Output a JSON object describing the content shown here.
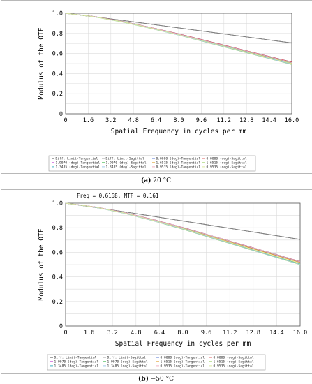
{
  "chart_data": [
    {
      "type": "line",
      "caption_label": "(a)",
      "caption_text": "20 °C",
      "readout": "",
      "xlabel": "Spatial Frequency in cycles per mm",
      "ylabel": "Modulus of the OTF",
      "xlim": [
        0,
        16
      ],
      "ylim": [
        0,
        1
      ],
      "x_ticks": [
        "0",
        "1.6",
        "3.2",
        "4.8",
        "6.4",
        "8.0",
        "9.6",
        "11.2",
        "12.8",
        "14.4",
        "16.0"
      ],
      "y_ticks": [
        "0",
        "0.2",
        "0.4",
        "0.6",
        "0.8",
        "1.0"
      ],
      "grid": true,
      "legend_placement": "bottom",
      "series": [
        {
          "name": "Diff. Limit-Tangential",
          "color": "#1a1a1a",
          "x": [
            0,
            4,
            8,
            12,
            16
          ],
          "y": [
            1.0,
            0.93,
            0.855,
            0.78,
            0.705
          ]
        },
        {
          "name": "Diff. Limit-Sagittal",
          "color": "#8a8a8a",
          "x": [
            0,
            4,
            8,
            12,
            16
          ],
          "y": [
            1.0,
            0.93,
            0.855,
            0.78,
            0.705
          ]
        },
        {
          "name": "0.0000 (deg)-Tangential",
          "color": "#2b55c8",
          "x": [
            0,
            2,
            4,
            6,
            8,
            10,
            12,
            14,
            16
          ],
          "y": [
            1.0,
            0.968,
            0.92,
            0.86,
            0.795,
            0.725,
            0.655,
            0.585,
            0.515
          ]
        },
        {
          "name": "0.0000 (deg)-Sagittal",
          "color": "#d63a3a",
          "x": [
            0,
            2,
            4,
            6,
            8,
            10,
            12,
            14,
            16
          ],
          "y": [
            1.0,
            0.968,
            0.92,
            0.86,
            0.795,
            0.725,
            0.655,
            0.585,
            0.515
          ]
        },
        {
          "name": "1.9070 (deg)-Tangential",
          "color": "#c23ad6",
          "x": [
            0,
            2,
            4,
            6,
            8,
            10,
            12,
            14,
            16
          ],
          "y": [
            1.0,
            0.967,
            0.918,
            0.857,
            0.791,
            0.72,
            0.649,
            0.578,
            0.507
          ]
        },
        {
          "name": "1.9070 (deg)-Sagittal",
          "color": "#3ab84a",
          "x": [
            0,
            2,
            4,
            6,
            8,
            10,
            12,
            14,
            16
          ],
          "y": [
            1.0,
            0.966,
            0.916,
            0.853,
            0.786,
            0.714,
            0.642,
            0.57,
            0.498
          ]
        },
        {
          "name": "1.6515 (deg)-Tangential",
          "color": "#e0a030",
          "x": [
            0,
            2,
            4,
            6,
            8,
            10,
            12,
            14,
            16
          ],
          "y": [
            1.0,
            0.967,
            0.918,
            0.856,
            0.79,
            0.719,
            0.648,
            0.577,
            0.506
          ]
        },
        {
          "name": "1.6515 (deg)-Sagittal",
          "color": "#9ad060",
          "x": [
            0,
            2,
            4,
            6,
            8,
            10,
            12,
            14,
            16
          ],
          "y": [
            1.0,
            0.965,
            0.914,
            0.851,
            0.783,
            0.71,
            0.637,
            0.564,
            0.491
          ]
        },
        {
          "name": "1.3485 (deg)-Tangential",
          "color": "#40b0c0",
          "x": [
            0,
            2,
            4,
            6,
            8,
            10,
            12,
            14,
            16
          ],
          "y": [
            1.0,
            0.967,
            0.919,
            0.858,
            0.792,
            0.721,
            0.65,
            0.58,
            0.509
          ]
        },
        {
          "name": "1.3485 (deg)-Sagittal",
          "color": "#a0c8e8",
          "x": [
            0,
            2,
            4,
            6,
            8,
            10,
            12,
            14,
            16
          ],
          "y": [
            1.0,
            0.966,
            0.915,
            0.852,
            0.784,
            0.711,
            0.639,
            0.566,
            0.494
          ]
        },
        {
          "name": "0.9535 (deg)-Tangential",
          "color": "#f0b0c0",
          "x": [
            0,
            2,
            4,
            6,
            8,
            10,
            12,
            14,
            16
          ],
          "y": [
            1.0,
            0.967,
            0.919,
            0.859,
            0.793,
            0.722,
            0.652,
            0.582,
            0.511
          ]
        },
        {
          "name": "0.9535 (deg)-Sagittal",
          "color": "#d8e8a0",
          "x": [
            0,
            2,
            4,
            6,
            8,
            10,
            12,
            14,
            16
          ],
          "y": [
            1.0,
            0.966,
            0.917,
            0.854,
            0.787,
            0.715,
            0.643,
            0.571,
            0.5
          ]
        }
      ]
    },
    {
      "type": "line",
      "caption_label": "(b)",
      "caption_text": "−50 °C",
      "readout": "Freq = 0.6168, MTF = 0.161",
      "xlabel": "Spatial Frequency in cycles per mm",
      "ylabel": "Modulus of the OTF",
      "xlim": [
        0,
        16
      ],
      "ylim": [
        0,
        1
      ],
      "x_ticks": [
        "0",
        "1.6",
        "3.2",
        "4.8",
        "6.4",
        "8.0",
        "9.6",
        "11.2",
        "12.8",
        "14.4",
        "16.0"
      ],
      "y_ticks": [
        "0",
        "0.2",
        "0.4",
        "0.6",
        "0.8",
        "1.0"
      ],
      "grid": true,
      "legend_placement": "bottom",
      "series": [
        {
          "name": "Diff. Limit-Tangential",
          "color": "#1a1a1a",
          "x": [
            0,
            4,
            8,
            12,
            16
          ],
          "y": [
            1.0,
            0.93,
            0.855,
            0.78,
            0.705
          ]
        },
        {
          "name": "Diff. Limit-Sagittal",
          "color": "#8a8a8a",
          "x": [
            0,
            4,
            8,
            12,
            16
          ],
          "y": [
            1.0,
            0.93,
            0.855,
            0.78,
            0.705
          ]
        },
        {
          "name": "0.0000 (deg)-Tangential",
          "color": "#2b55c8",
          "x": [
            0,
            2,
            4,
            6,
            8,
            10,
            12,
            14,
            16
          ],
          "y": [
            1.0,
            0.97,
            0.924,
            0.866,
            0.802,
            0.733,
            0.664,
            0.595,
            0.525
          ]
        },
        {
          "name": "0.0000 (deg)-Sagittal",
          "color": "#d63a3a",
          "x": [
            0,
            2,
            4,
            6,
            8,
            10,
            12,
            14,
            16
          ],
          "y": [
            1.0,
            0.97,
            0.924,
            0.866,
            0.802,
            0.733,
            0.664,
            0.595,
            0.525
          ]
        },
        {
          "name": "1.9070 (deg)-Tangential",
          "color": "#c23ad6",
          "x": [
            0,
            2,
            4,
            6,
            8,
            10,
            12,
            14,
            16
          ],
          "y": [
            1.0,
            0.969,
            0.922,
            0.863,
            0.798,
            0.728,
            0.658,
            0.588,
            0.518
          ]
        },
        {
          "name": "1.9070 (deg)-Sagittal",
          "color": "#3ab84a",
          "x": [
            0,
            2,
            4,
            6,
            8,
            10,
            12,
            14,
            16
          ],
          "y": [
            1.0,
            0.968,
            0.919,
            0.858,
            0.791,
            0.72,
            0.649,
            0.578,
            0.507
          ]
        },
        {
          "name": "1.6515 (deg)-Tangential",
          "color": "#e0a030",
          "x": [
            0,
            2,
            4,
            6,
            8,
            10,
            12,
            14,
            16
          ],
          "y": [
            1.0,
            0.969,
            0.921,
            0.862,
            0.797,
            0.727,
            0.657,
            0.587,
            0.517
          ]
        },
        {
          "name": "1.6515 (deg)-Sagittal",
          "color": "#9ad060",
          "x": [
            0,
            2,
            4,
            6,
            8,
            10,
            12,
            14,
            16
          ],
          "y": [
            1.0,
            0.967,
            0.917,
            0.855,
            0.787,
            0.715,
            0.643,
            0.571,
            0.5
          ]
        },
        {
          "name": "1.3485 (deg)-Tangential",
          "color": "#40b0c0",
          "x": [
            0,
            2,
            4,
            6,
            8,
            10,
            12,
            14,
            16
          ],
          "y": [
            1.0,
            0.969,
            0.922,
            0.864,
            0.8,
            0.731,
            0.662,
            0.593,
            0.523
          ]
        },
        {
          "name": "1.3485 (deg)-Sagittal",
          "color": "#a0c8e8",
          "x": [
            0,
            2,
            4,
            6,
            8,
            10,
            12,
            14,
            16
          ],
          "y": [
            1.0,
            0.967,
            0.918,
            0.856,
            0.789,
            0.717,
            0.645,
            0.573,
            0.502
          ]
        },
        {
          "name": "0.9535 (deg)-Tangential",
          "color": "#f0b0c0",
          "x": [
            0,
            2,
            4,
            6,
            8,
            10,
            12,
            14,
            16
          ],
          "y": [
            1.0,
            0.97,
            0.923,
            0.865,
            0.801,
            0.732,
            0.663,
            0.594,
            0.524
          ]
        },
        {
          "name": "0.9535 (deg)-Sagittal",
          "color": "#d8e8a0",
          "x": [
            0,
            2,
            4,
            6,
            8,
            10,
            12,
            14,
            16
          ],
          "y": [
            1.0,
            0.968,
            0.92,
            0.859,
            0.793,
            0.722,
            0.651,
            0.58,
            0.51
          ]
        }
      ]
    }
  ]
}
